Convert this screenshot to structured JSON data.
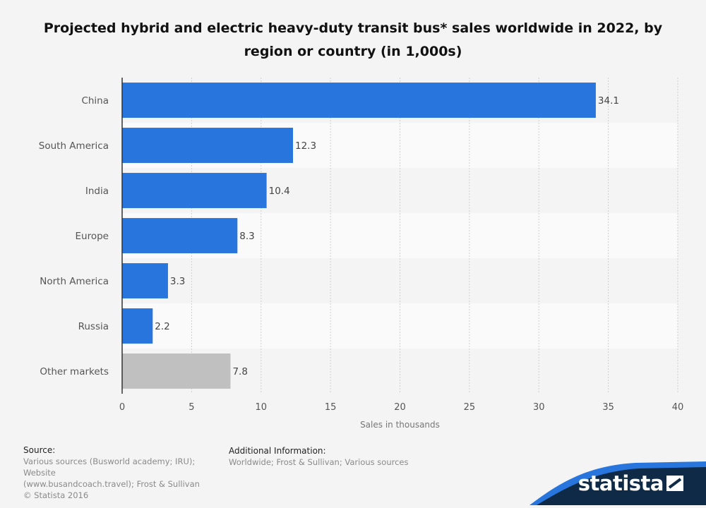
{
  "chart_data": {
    "type": "bar",
    "orientation": "horizontal",
    "title": "Projected hybrid and electric heavy-duty transit bus* sales worldwide in 2022, by region or country (in 1,000s)",
    "xlabel": "Sales in thousands",
    "ylabel": "",
    "xlim": [
      0,
      40
    ],
    "xticks": [
      0,
      5,
      10,
      15,
      20,
      25,
      30,
      35,
      40
    ],
    "grid": true,
    "categories": [
      "China",
      "South America",
      "India",
      "Europe",
      "North America",
      "Russia",
      "Other markets"
    ],
    "values": [
      34.1,
      12.3,
      10.4,
      8.3,
      3.3,
      2.2,
      7.8
    ],
    "value_labels": [
      "34.1",
      "12.3",
      "10.4",
      "8.3",
      "3.3",
      "2.2",
      "7.8"
    ],
    "colors": {
      "bar": "#2876dd",
      "bar_other": "#c0c0c0"
    }
  },
  "footer": {
    "source_head": "Source:",
    "source_lines": [
      "Various sources (Busworld academy; IRU); Website",
      "(www.busandcoach.travel); Frost & Sullivan",
      "© Statista 2016"
    ],
    "addinfo_head": "Additional Information:",
    "addinfo_body": "Worldwide; Frost & Sullivan; Various sources"
  },
  "brand": {
    "logo_text": "statista",
    "logo_icon": "statista-logo-icon"
  }
}
